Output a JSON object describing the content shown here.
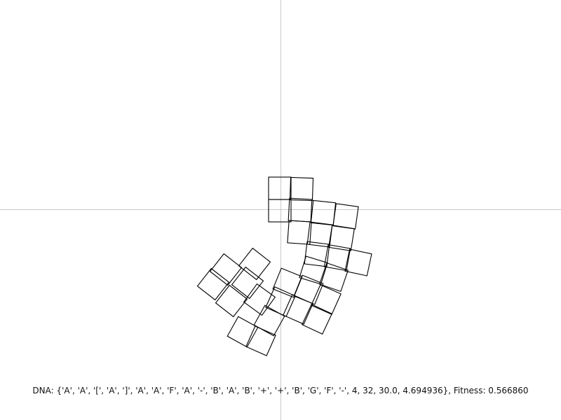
{
  "status": {
    "dna_label": "DNA: ",
    "dna_value": "{'A', 'A', '[', 'A', ']', 'A', 'A', 'F', 'A', '-', 'B', 'A', 'B', '+', '+', 'B', 'G', 'F', '-', 4, 32, 30.0, 4.694936}",
    "fitness_label": ", Fitness: ",
    "fitness_value": "0.566860"
  },
  "colors": {
    "background": "#ffffff",
    "axis": "#c8c8c8",
    "shape_stroke": "#000000"
  }
}
